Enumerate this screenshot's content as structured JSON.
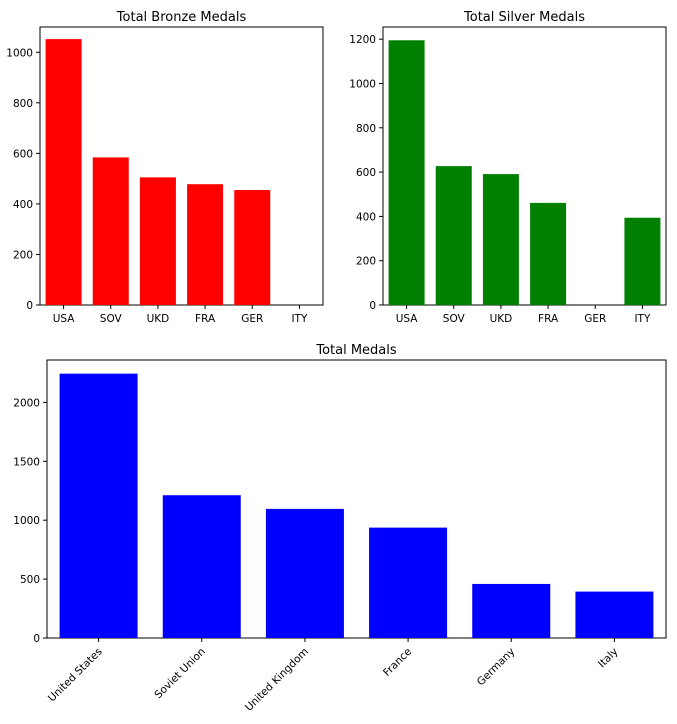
{
  "chart_data": [
    {
      "type": "bar",
      "title": "Total Bronze Medals",
      "categories": [
        "USA",
        "SOV",
        "UKD",
        "FRA",
        "GER",
        "ITY"
      ],
      "values": [
        1052,
        584,
        505,
        478,
        455,
        0
      ],
      "ylim": [
        0,
        1100
      ],
      "yticks": [
        0,
        200,
        400,
        600,
        800,
        1000
      ],
      "color": "#ff0000",
      "grid": false
    },
    {
      "type": "bar",
      "title": "Total Silver Medals",
      "categories": [
        "USA",
        "SOV",
        "UKD",
        "FRA",
        "GER",
        "ITY"
      ],
      "values": [
        1195,
        627,
        591,
        461,
        0,
        394
      ],
      "ylim": [
        0,
        1255
      ],
      "yticks": [
        0,
        200,
        400,
        600,
        800,
        1000,
        1200
      ],
      "color": "#008000",
      "grid": false
    },
    {
      "type": "bar",
      "title": "Total Medals",
      "categories": [
        "United States",
        "Soviet Union",
        "United Kingdom",
        "France",
        "Germany",
        "Italy"
      ],
      "values": [
        2244,
        1212,
        1096,
        937,
        459,
        394
      ],
      "ylim": [
        0,
        2360
      ],
      "yticks": [
        0,
        500,
        1000,
        1500,
        2000
      ],
      "color": "#0000ff",
      "grid": false,
      "xtick_rotation": 45
    }
  ]
}
